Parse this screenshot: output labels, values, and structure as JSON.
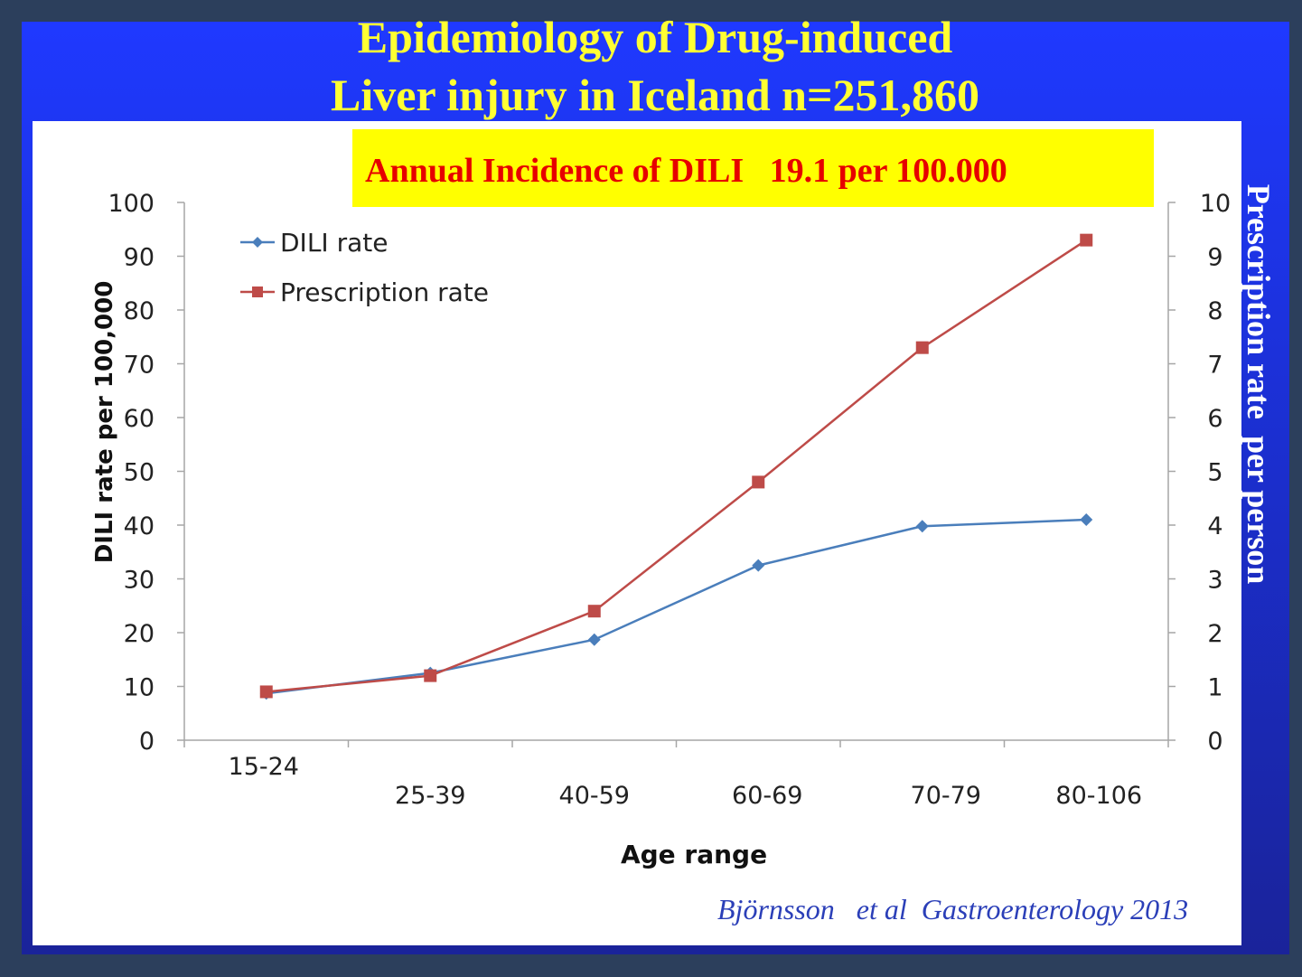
{
  "title_line1": "Epidemiology of Drug-induced",
  "title_line2": "Liver injury in Iceland n=251,860",
  "banner": "Annual Incidence of DILI   19.1 per 100.000",
  "citation": "Björnsson   et al  Gastroenterology 2013",
  "colors": {
    "background_blue": "#1f39ff",
    "title_yellow": "#ffff33",
    "banner_yellow": "#ffff00",
    "banner_text_red": "#e60000",
    "dili_series": "#4a7ebb",
    "prescription_series": "#be4b48"
  },
  "chart_data": {
    "type": "line",
    "categories": [
      "15-24",
      "25-39",
      "40-59",
      "60-69",
      "70-79",
      "80-106"
    ],
    "series": [
      {
        "name": "DILI rate",
        "axis": "left",
        "marker": "diamond",
        "color": "#4a7ebb",
        "values": [
          8.7,
          12.5,
          18.7,
          32.5,
          39.8,
          41.0
        ]
      },
      {
        "name": "Prescription rate",
        "axis": "right",
        "marker": "square",
        "color": "#be4b48",
        "values": [
          0.9,
          1.2,
          2.4,
          4.8,
          7.3,
          9.3
        ]
      }
    ],
    "xlabel": "Age range",
    "ylabel": "DILI rate per 100,000",
    "ylabel_right": "Prescription rate  per person",
    "ylim": [
      0,
      100
    ],
    "ylim_right": [
      0,
      10
    ],
    "yticks": [
      "0",
      "10",
      "20",
      "30",
      "40",
      "50",
      "60",
      "70",
      "80",
      "90",
      "100"
    ],
    "yticks_right": [
      "0",
      "1",
      "2",
      "3",
      "4",
      "5",
      "6",
      "7",
      "8",
      "9",
      "10"
    ],
    "grid": false,
    "legend_position": "top-left"
  }
}
